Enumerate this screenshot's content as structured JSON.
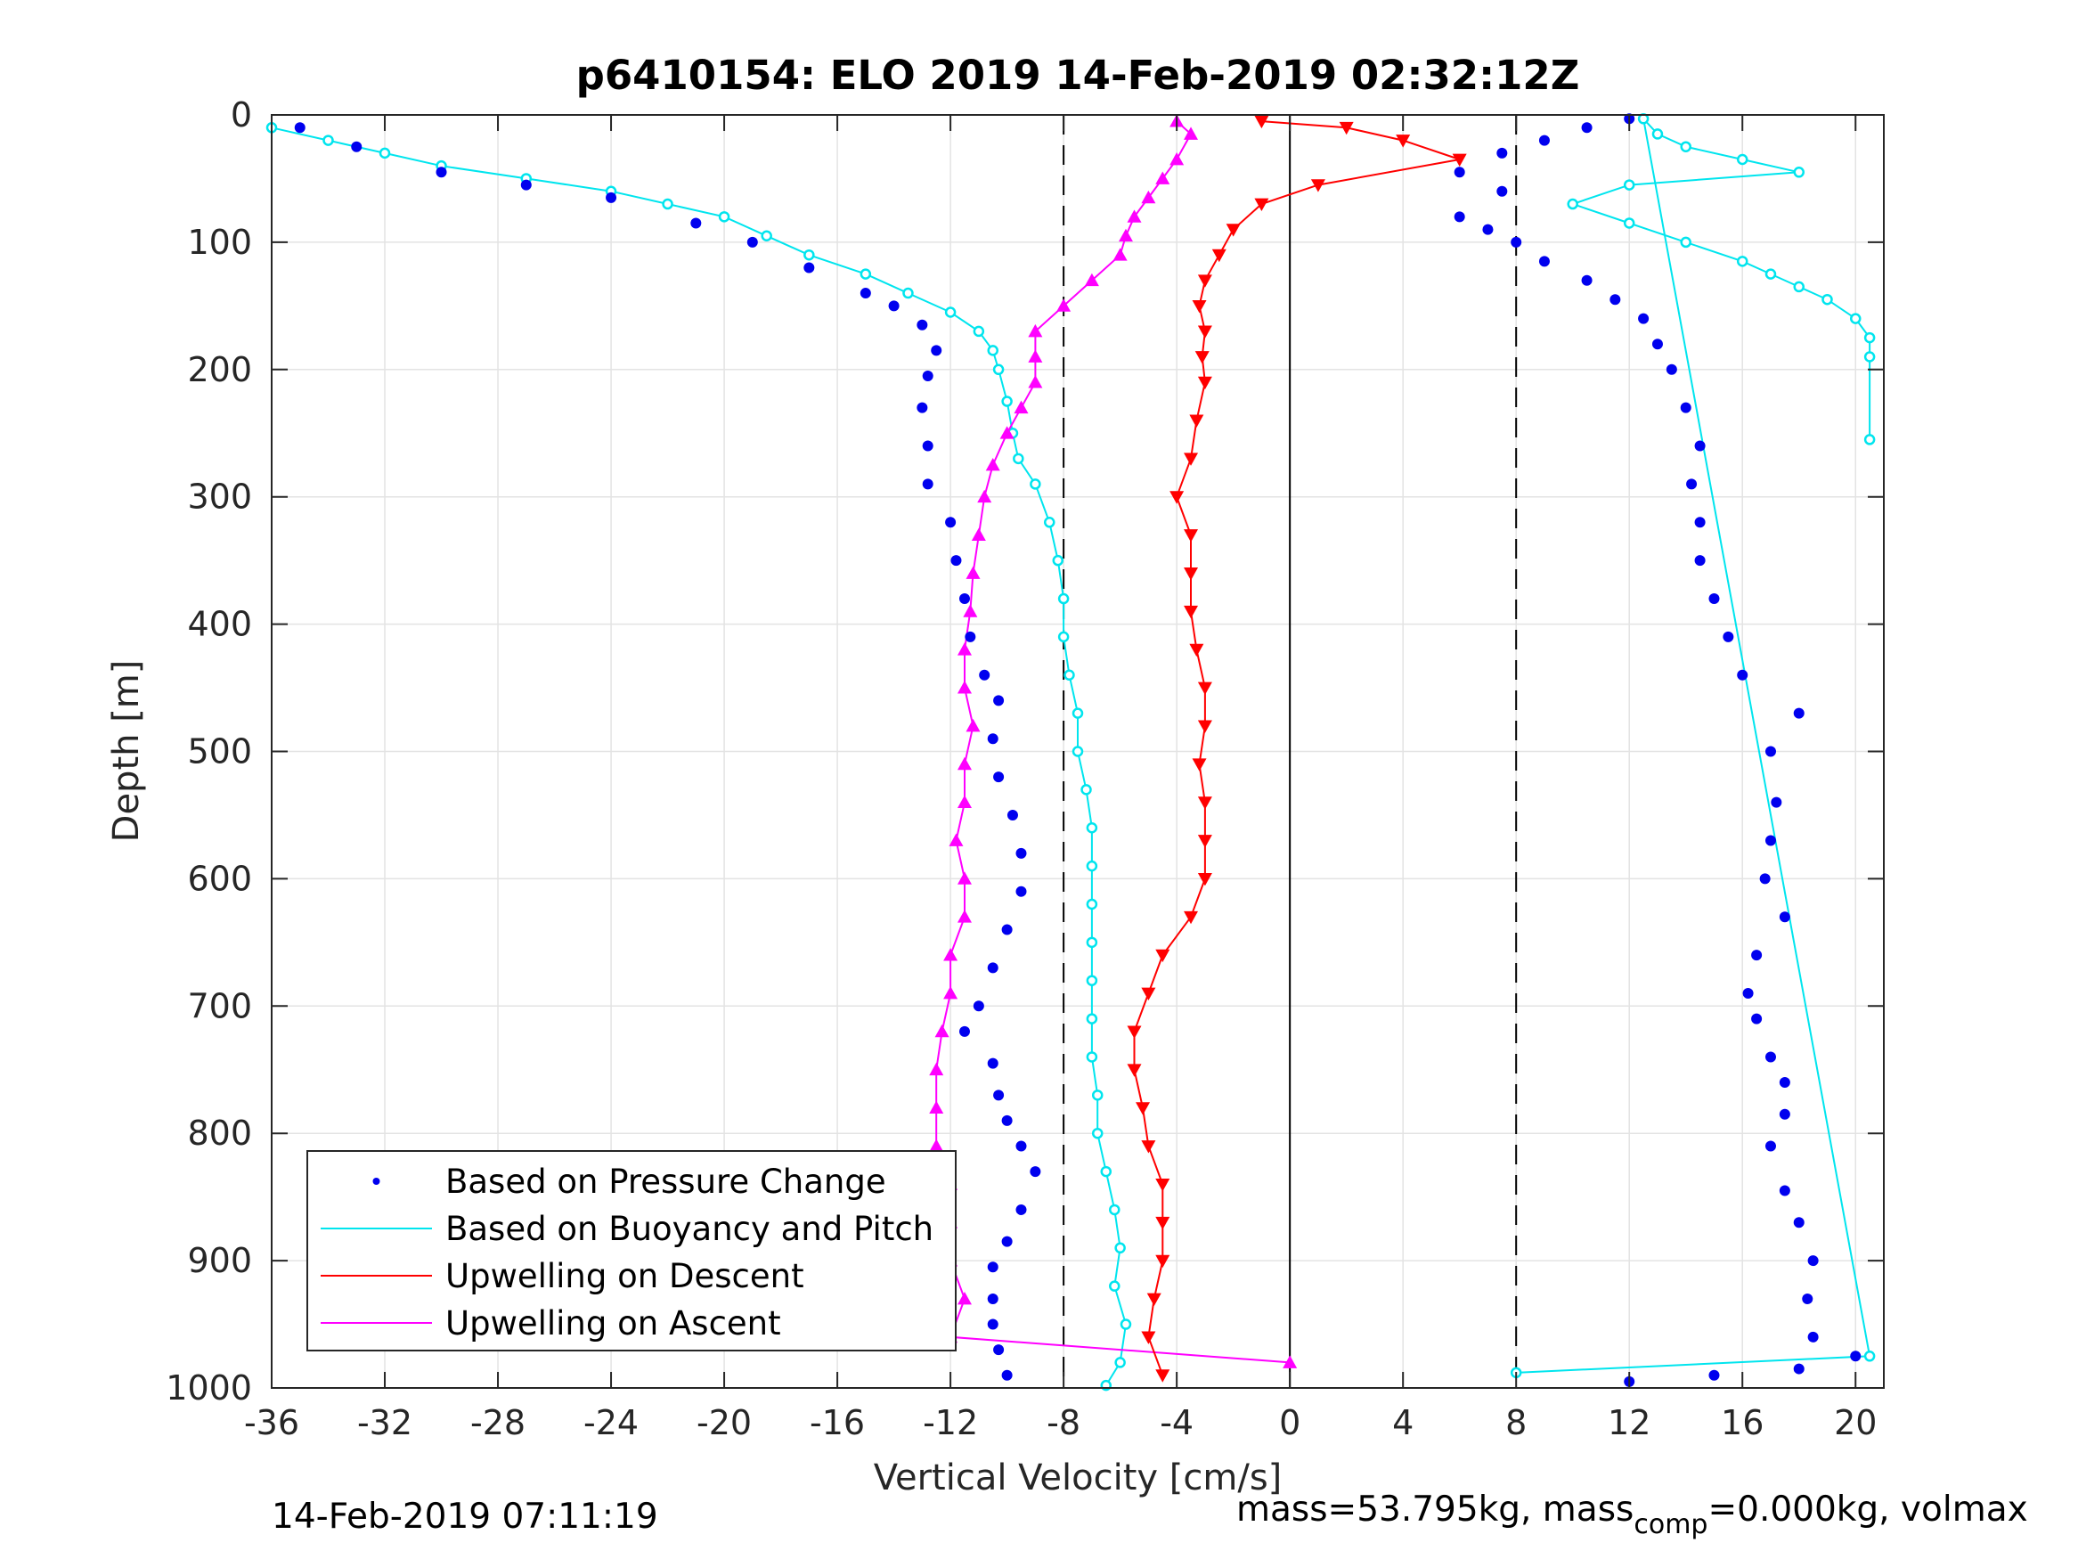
{
  "chart_data": {
    "type": "scatter",
    "title": "p6410154: ELO 2019 14-Feb-2019 02:32:12Z",
    "xlabel": "Vertical Velocity [cm/s]",
    "ylabel": "Depth [m]",
    "xlim": [
      -36,
      21
    ],
    "ylim": [
      0,
      1000
    ],
    "y_reversed": true,
    "grid": true,
    "x_ticks": [
      -36,
      -32,
      -28,
      -24,
      -20,
      -16,
      -12,
      -8,
      -4,
      0,
      4,
      8,
      12,
      16,
      20
    ],
    "x_tick_labels": [
      "-36",
      "-32",
      "-28",
      "-24",
      "-20",
      "-16",
      "-12",
      "-8",
      "-4",
      "0",
      "4",
      "8",
      "12",
      "16",
      "20"
    ],
    "y_ticks": [
      0,
      100,
      200,
      300,
      400,
      500,
      600,
      700,
      800,
      900,
      1000
    ],
    "y_tick_labels": [
      "0",
      "100",
      "200",
      "300",
      "400",
      "500",
      "600",
      "700",
      "800",
      "900",
      "1000"
    ],
    "reference_lines": [
      {
        "x": -8,
        "style": "dashed"
      },
      {
        "x": 0,
        "style": "solid"
      },
      {
        "x": 8,
        "style": "dashed"
      }
    ],
    "legend_position": "bottom-left",
    "colors": {
      "pressure": "#0000ee",
      "buoyancy": "#00e5ee",
      "descent": "#ff0000",
      "ascent": "#ff00ff"
    },
    "series": [
      {
        "name": "Based on Pressure Change",
        "key": "pressure",
        "marker": "dot",
        "profiles": [
          {
            "phase": "descent",
            "points": [
              [
                -35,
                10
              ],
              [
                -33,
                25
              ],
              [
                -30,
                45
              ],
              [
                -27,
                55
              ],
              [
                -24,
                65
              ],
              [
                -21,
                85
              ],
              [
                -19,
                100
              ],
              [
                -17,
                120
              ],
              [
                -15,
                140
              ],
              [
                -14,
                150
              ],
              [
                -13,
                165
              ],
              [
                -12.5,
                185
              ],
              [
                -12.8,
                205
              ],
              [
                -13,
                230
              ],
              [
                -12.8,
                260
              ],
              [
                -12.8,
                290
              ],
              [
                -12,
                320
              ],
              [
                -11.8,
                350
              ],
              [
                -11.5,
                380
              ],
              [
                -11.3,
                410
              ],
              [
                -10.8,
                440
              ],
              [
                -10.3,
                460
              ],
              [
                -10.5,
                490
              ],
              [
                -10.3,
                520
              ],
              [
                -9.8,
                550
              ],
              [
                -9.5,
                580
              ],
              [
                -9.5,
                610
              ],
              [
                -10,
                640
              ],
              [
                -10.5,
                670
              ],
              [
                -11,
                700
              ],
              [
                -11.5,
                720
              ],
              [
                -10.5,
                745
              ],
              [
                -10.3,
                770
              ],
              [
                -10,
                790
              ],
              [
                -9.5,
                810
              ],
              [
                -9,
                830
              ],
              [
                -9.5,
                860
              ],
              [
                -10,
                885
              ],
              [
                -10.5,
                905
              ],
              [
                -10.5,
                930
              ],
              [
                -10.5,
                950
              ],
              [
                -10.3,
                970
              ],
              [
                -10,
                990
              ]
            ]
          },
          {
            "phase": "ascent",
            "points": [
              [
                20,
                975
              ],
              [
                18,
                985
              ],
              [
                15,
                990
              ],
              [
                12,
                995
              ],
              [
                18.5,
                960
              ],
              [
                18.3,
                930
              ],
              [
                18.5,
                900
              ],
              [
                18,
                870
              ],
              [
                17.5,
                845
              ],
              [
                17,
                810
              ],
              [
                17.5,
                785
              ],
              [
                17.5,
                760
              ],
              [
                17,
                740
              ],
              [
                16.5,
                710
              ],
              [
                16.2,
                690
              ],
              [
                16.5,
                660
              ],
              [
                17.5,
                630
              ],
              [
                16.8,
                600
              ],
              [
                17,
                570
              ],
              [
                17.2,
                540
              ],
              [
                17,
                500
              ],
              [
                18,
                470
              ],
              [
                16,
                440
              ],
              [
                15.5,
                410
              ],
              [
                15,
                380
              ],
              [
                14.5,
                350
              ],
              [
                14.5,
                320
              ],
              [
                14.2,
                290
              ],
              [
                14.5,
                260
              ],
              [
                14,
                230
              ],
              [
                13.5,
                200
              ],
              [
                13,
                180
              ],
              [
                12.5,
                160
              ],
              [
                11.5,
                145
              ],
              [
                10.5,
                130
              ],
              [
                9,
                115
              ],
              [
                8,
                100
              ],
              [
                7,
                90
              ],
              [
                6,
                80
              ],
              [
                7.5,
                60
              ],
              [
                6,
                45
              ],
              [
                7.5,
                30
              ],
              [
                9,
                20
              ],
              [
                10.5,
                10
              ],
              [
                12,
                3
              ]
            ]
          }
        ]
      },
      {
        "name": "Based on Buoyancy and Pitch",
        "key": "buoyancy",
        "marker": "circle",
        "profiles": [
          {
            "phase": "descent",
            "points": [
              [
                -36,
                10
              ],
              [
                -34,
                20
              ],
              [
                -32,
                30
              ],
              [
                -30,
                40
              ],
              [
                -27,
                50
              ],
              [
                -24,
                60
              ],
              [
                -22,
                70
              ],
              [
                -20,
                80
              ],
              [
                -18.5,
                95
              ],
              [
                -17,
                110
              ],
              [
                -15,
                125
              ],
              [
                -13.5,
                140
              ],
              [
                -12,
                155
              ],
              [
                -11,
                170
              ],
              [
                -10.5,
                185
              ],
              [
                -10.3,
                200
              ],
              [
                -10,
                225
              ],
              [
                -9.8,
                250
              ],
              [
                -9.6,
                270
              ],
              [
                -9,
                290
              ],
              [
                -8.5,
                320
              ],
              [
                -8.2,
                350
              ],
              [
                -8,
                380
              ],
              [
                -8,
                410
              ],
              [
                -7.8,
                440
              ],
              [
                -7.5,
                470
              ],
              [
                -7.5,
                500
              ],
              [
                -7.2,
                530
              ],
              [
                -7,
                560
              ],
              [
                -7,
                590
              ],
              [
                -7,
                620
              ],
              [
                -7,
                650
              ],
              [
                -7,
                680
              ],
              [
                -7,
                710
              ],
              [
                -7,
                740
              ],
              [
                -6.8,
                770
              ],
              [
                -6.8,
                800
              ],
              [
                -6.5,
                830
              ],
              [
                -6.2,
                860
              ],
              [
                -6,
                890
              ],
              [
                -6.2,
                920
              ],
              [
                -5.8,
                950
              ],
              [
                -6,
                980
              ],
              [
                -6.5,
                998
              ]
            ]
          },
          {
            "phase": "ascent",
            "points": [
              [
                8,
                988
              ],
              [
                20.5,
                975
              ],
              [
                12.5,
                3
              ],
              [
                13,
                15
              ],
              [
                14,
                25
              ],
              [
                16,
                35
              ],
              [
                18,
                45
              ],
              [
                12,
                55
              ],
              [
                10,
                70
              ],
              [
                12,
                85
              ],
              [
                14,
                100
              ],
              [
                16,
                115
              ],
              [
                17,
                125
              ],
              [
                18,
                135
              ],
              [
                19,
                145
              ],
              [
                20,
                160
              ],
              [
                20.5,
                175
              ],
              [
                20.5,
                190
              ],
              [
                20.5,
                255
              ]
            ]
          }
        ]
      },
      {
        "name": "Upwelling on Descent",
        "key": "descent",
        "marker": "triangle-down",
        "points": [
          [
            -1,
            5
          ],
          [
            2,
            10
          ],
          [
            4,
            20
          ],
          [
            6,
            35
          ],
          [
            1,
            55
          ],
          [
            -1,
            70
          ],
          [
            -2,
            90
          ],
          [
            -2.5,
            110
          ],
          [
            -3,
            130
          ],
          [
            -3.2,
            150
          ],
          [
            -3,
            170
          ],
          [
            -3.1,
            190
          ],
          [
            -3,
            210
          ],
          [
            -3.3,
            240
          ],
          [
            -3.5,
            270
          ],
          [
            -4,
            300
          ],
          [
            -3.5,
            330
          ],
          [
            -3.5,
            360
          ],
          [
            -3.5,
            390
          ],
          [
            -3.3,
            420
          ],
          [
            -3,
            450
          ],
          [
            -3,
            480
          ],
          [
            -3.2,
            510
          ],
          [
            -3,
            540
          ],
          [
            -3,
            570
          ],
          [
            -3,
            600
          ],
          [
            -3.5,
            630
          ],
          [
            -4.5,
            660
          ],
          [
            -5,
            690
          ],
          [
            -5.5,
            720
          ],
          [
            -5.5,
            750
          ],
          [
            -5.2,
            780
          ],
          [
            -5,
            810
          ],
          [
            -4.5,
            840
          ],
          [
            -4.5,
            870
          ],
          [
            -4.5,
            900
          ],
          [
            -4.8,
            930
          ],
          [
            -5,
            960
          ],
          [
            -4.5,
            990
          ]
        ]
      },
      {
        "name": "Upwelling on Ascent",
        "key": "ascent",
        "marker": "triangle-up",
        "points": [
          [
            0,
            980
          ],
          [
            -12,
            960
          ],
          [
            -11.5,
            930
          ],
          [
            -12,
            900
          ],
          [
            -12,
            870
          ],
          [
            -12,
            840
          ],
          [
            -12.5,
            810
          ],
          [
            -12.5,
            780
          ],
          [
            -12.5,
            750
          ],
          [
            -12.3,
            720
          ],
          [
            -12,
            690
          ],
          [
            -12,
            660
          ],
          [
            -11.5,
            630
          ],
          [
            -11.5,
            600
          ],
          [
            -11.8,
            570
          ],
          [
            -11.5,
            540
          ],
          [
            -11.5,
            510
          ],
          [
            -11.2,
            480
          ],
          [
            -11.5,
            450
          ],
          [
            -11.5,
            420
          ],
          [
            -11.3,
            390
          ],
          [
            -11.2,
            360
          ],
          [
            -11,
            330
          ],
          [
            -10.8,
            300
          ],
          [
            -10.5,
            275
          ],
          [
            -10,
            250
          ],
          [
            -9.5,
            230
          ],
          [
            -9,
            210
          ],
          [
            -9,
            190
          ],
          [
            -9,
            170
          ],
          [
            -8,
            150
          ],
          [
            -7,
            130
          ],
          [
            -6,
            110
          ],
          [
            -5.8,
            95
          ],
          [
            -5.5,
            80
          ],
          [
            -5,
            65
          ],
          [
            -4.5,
            50
          ],
          [
            -4,
            35
          ],
          [
            -3.5,
            15
          ],
          [
            -4,
            5
          ]
        ]
      }
    ],
    "annotations": [
      {
        "text": "14-Feb-2019 07:11:19"
      },
      {
        "text": "mass=53.795kg, mass"
      },
      {
        "text": "comp"
      },
      {
        "text": "=0.000kg, volmax"
      }
    ]
  }
}
